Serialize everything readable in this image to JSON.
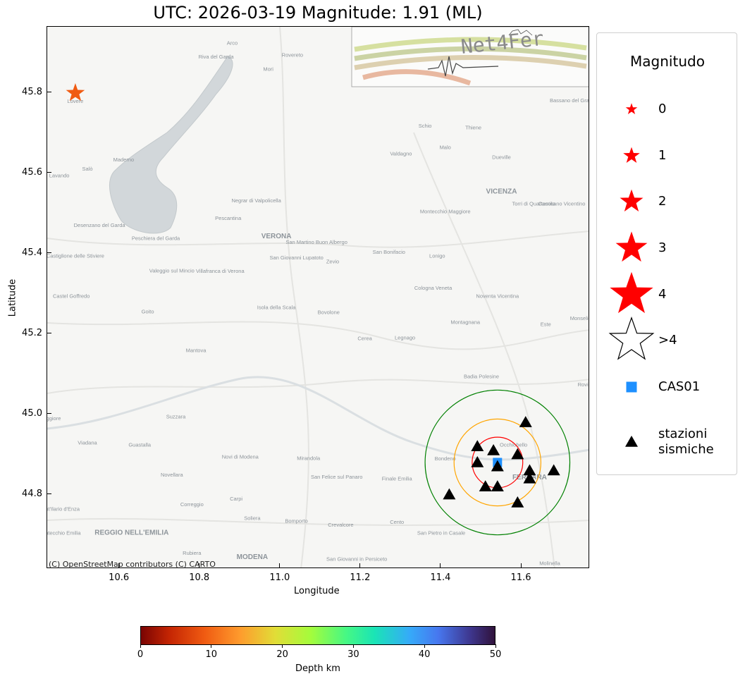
{
  "title": "UTC: 2026-03-19 Magnitude: 1.91 (ML)",
  "map": {
    "attribution": "(C) OpenStreetMap contributors (C) CARTO",
    "logo_text": "Net4Fer",
    "xlabel": "Longitude",
    "ylabel": "Latitude",
    "xlim": [
      10.42,
      11.77
    ],
    "ylim": [
      44.615,
      45.965
    ],
    "x_ticks": [
      "10.6",
      "10.8",
      "11.0",
      "11.2",
      "11.4",
      "11.6"
    ],
    "y_ticks": [
      "44.8",
      "45.0",
      "45.2",
      "45.4",
      "45.6",
      "45.8"
    ],
    "places": [
      {
        "name": "Arco",
        "lon": 10.88,
        "lat": 45.92
      },
      {
        "name": "Riva del Garda",
        "lon": 10.84,
        "lat": 45.886
      },
      {
        "name": "Rovereto",
        "lon": 11.03,
        "lat": 45.89
      },
      {
        "name": "Mori",
        "lon": 10.97,
        "lat": 45.855
      },
      {
        "name": "Lovere",
        "lon": 10.49,
        "lat": 45.775
      },
      {
        "name": "Bassano del Grappa",
        "lon": 11.73,
        "lat": 45.777
      },
      {
        "name": "Schio",
        "lon": 11.36,
        "lat": 45.714
      },
      {
        "name": "Thiene",
        "lon": 11.48,
        "lat": 45.71
      },
      {
        "name": "Malo",
        "lon": 11.41,
        "lat": 45.66
      },
      {
        "name": "Valdagno",
        "lon": 11.3,
        "lat": 45.645
      },
      {
        "name": "Dueville",
        "lon": 11.55,
        "lat": 45.636
      },
      {
        "name": "Maderno",
        "lon": 10.61,
        "lat": 45.63
      },
      {
        "name": "Salò",
        "lon": 10.52,
        "lat": 45.607
      },
      {
        "name": "Lavando",
        "lon": 10.45,
        "lat": 45.59
      },
      {
        "name": "VICENZA",
        "lon": 11.55,
        "lat": 45.55
      },
      {
        "name": "Negrar di Valpolicella",
        "lon": 10.94,
        "lat": 45.528
      },
      {
        "name": "Torri di Quartesolo",
        "lon": 11.63,
        "lat": 45.52
      },
      {
        "name": "Camisano Vicentino",
        "lon": 11.7,
        "lat": 45.52
      },
      {
        "name": "Montecchio Maggiore",
        "lon": 11.41,
        "lat": 45.501
      },
      {
        "name": "Pescantina",
        "lon": 10.87,
        "lat": 45.484
      },
      {
        "name": "Desenzano del Garda",
        "lon": 10.55,
        "lat": 45.466
      },
      {
        "name": "Peschiera del Garda",
        "lon": 10.69,
        "lat": 45.434
      },
      {
        "name": "VERONA",
        "lon": 10.99,
        "lat": 45.438
      },
      {
        "name": "San Martino Buon Albergo",
        "lon": 11.09,
        "lat": 45.424
      },
      {
        "name": "San Bonifacio",
        "lon": 11.27,
        "lat": 45.4
      },
      {
        "name": "Lonigo",
        "lon": 11.39,
        "lat": 45.39
      },
      {
        "name": "Castiglione delle Stiviere",
        "lon": 10.49,
        "lat": 45.39
      },
      {
        "name": "San Giovanni Lupatoto",
        "lon": 11.04,
        "lat": 45.386
      },
      {
        "name": "Zevio",
        "lon": 11.13,
        "lat": 45.376
      },
      {
        "name": "Valeggio sul Mincio",
        "lon": 10.73,
        "lat": 45.353
      },
      {
        "name": "Villafranca di Verona",
        "lon": 10.85,
        "lat": 45.352
      },
      {
        "name": "Cologna Veneta",
        "lon": 11.38,
        "lat": 45.31
      },
      {
        "name": "Noventa Vicentina",
        "lon": 11.54,
        "lat": 45.29
      },
      {
        "name": "Castel Goffredo",
        "lon": 10.48,
        "lat": 45.29
      },
      {
        "name": "Isola della Scala",
        "lon": 10.99,
        "lat": 45.262
      },
      {
        "name": "Bovolone",
        "lon": 11.12,
        "lat": 45.25
      },
      {
        "name": "Goito",
        "lon": 10.67,
        "lat": 45.251
      },
      {
        "name": "Montagnana",
        "lon": 11.46,
        "lat": 45.225
      },
      {
        "name": "Este",
        "lon": 11.66,
        "lat": 45.22
      },
      {
        "name": "Monselice",
        "lon": 11.75,
        "lat": 45.235
      },
      {
        "name": "Cerea",
        "lon": 11.21,
        "lat": 45.185
      },
      {
        "name": "Legnago",
        "lon": 11.31,
        "lat": 45.186
      },
      {
        "name": "Mantova",
        "lon": 10.79,
        "lat": 45.155
      },
      {
        "name": "Badia Polesine",
        "lon": 11.5,
        "lat": 45.09
      },
      {
        "name": "Rovigo",
        "lon": 11.76,
        "lat": 45.07
      },
      {
        "name": "Suzzara",
        "lon": 10.74,
        "lat": 44.99
      },
      {
        "name": "Viggiore",
        "lon": 10.43,
        "lat": 44.985
      },
      {
        "name": "Viadana",
        "lon": 10.52,
        "lat": 44.925
      },
      {
        "name": "Guastalla",
        "lon": 10.65,
        "lat": 44.92
      },
      {
        "name": "Novi di Modena",
        "lon": 10.9,
        "lat": 44.89
      },
      {
        "name": "Mirandola",
        "lon": 11.07,
        "lat": 44.886
      },
      {
        "name": "Bondeno",
        "lon": 11.41,
        "lat": 44.885
      },
      {
        "name": "Occhiobello",
        "lon": 11.58,
        "lat": 44.92
      },
      {
        "name": "Novellara",
        "lon": 10.73,
        "lat": 44.845
      },
      {
        "name": "San Felice sul Panaro",
        "lon": 11.14,
        "lat": 44.84
      },
      {
        "name": "Finale Emilia",
        "lon": 11.29,
        "lat": 44.835
      },
      {
        "name": "FERRARA",
        "lon": 11.62,
        "lat": 44.838
      },
      {
        "name": "Carpi",
        "lon": 10.89,
        "lat": 44.785
      },
      {
        "name": "Correggio",
        "lon": 10.78,
        "lat": 44.771
      },
      {
        "name": "Sant'Ilario d'Enza",
        "lon": 10.45,
        "lat": 44.76
      },
      {
        "name": "Soliera",
        "lon": 10.93,
        "lat": 44.737
      },
      {
        "name": "Bomporto",
        "lon": 11.04,
        "lat": 44.73
      },
      {
        "name": "Crevalcore",
        "lon": 11.15,
        "lat": 44.72
      },
      {
        "name": "Cento",
        "lon": 11.29,
        "lat": 44.727
      },
      {
        "name": "San Pietro in Casale",
        "lon": 11.4,
        "lat": 44.7
      },
      {
        "name": "Montecchio Emilia",
        "lon": 10.45,
        "lat": 44.7
      },
      {
        "name": "REGGIO NELL'EMILIA",
        "lon": 10.63,
        "lat": 44.7
      },
      {
        "name": "Rubiera",
        "lon": 10.78,
        "lat": 44.65
      },
      {
        "name": "MODENA",
        "lon": 10.93,
        "lat": 44.64
      },
      {
        "name": "San Giovanni in Persiceto",
        "lon": 11.19,
        "lat": 44.635
      },
      {
        "name": "Molinella",
        "lon": 11.67,
        "lat": 44.625
      }
    ]
  },
  "legend": {
    "title": "Magnitudo",
    "items": [
      {
        "label": "0",
        "marker": "star",
        "size": 14,
        "color": "#ff0000"
      },
      {
        "label": "1",
        "marker": "star",
        "size": 20,
        "color": "#ff0000"
      },
      {
        "label": "2",
        "marker": "star",
        "size": 28,
        "color": "#ff0000"
      },
      {
        "label": "3",
        "marker": "star",
        "size": 38,
        "color": "#ff0000"
      },
      {
        "label": "4",
        "marker": "star",
        "size": 52,
        "color": "#ff0000"
      },
      {
        "label": ">4",
        "marker": "star",
        "size": 52,
        "color": "none"
      },
      {
        "label": "CAS01",
        "marker": "square",
        "size": 15,
        "color": "#1e90ff"
      },
      {
        "label": "stazioni\nsismiche",
        "marker": "triangle",
        "size": 15,
        "color": "#000000"
      }
    ]
  },
  "chart_data": {
    "type": "scatter",
    "title": "UTC: 2026-03-19 Magnitude: 1.91 (ML)",
    "xlabel": "Longitude",
    "ylabel": "Latitude",
    "xlim": [
      10.42,
      11.77
    ],
    "ylim": [
      44.615,
      45.965
    ],
    "series": [
      {
        "name": "event",
        "marker": "star",
        "magnitude": 1.91,
        "color": "#f05b12",
        "points": [
          {
            "x": 10.49,
            "y": 45.8
          }
        ]
      },
      {
        "name": "CAS01",
        "marker": "square",
        "color": "#1e90ff",
        "points": [
          {
            "x": 11.54,
            "y": 44.88
          }
        ]
      },
      {
        "name": "stazioni sismiche",
        "marker": "triangle",
        "color": "#000000",
        "points": [
          {
            "x": 11.61,
            "y": 44.98
          },
          {
            "x": 11.49,
            "y": 44.92
          },
          {
            "x": 11.53,
            "y": 44.91
          },
          {
            "x": 11.59,
            "y": 44.9
          },
          {
            "x": 11.49,
            "y": 44.88
          },
          {
            "x": 11.54,
            "y": 44.87
          },
          {
            "x": 11.62,
            "y": 44.86
          },
          {
            "x": 11.68,
            "y": 44.86
          },
          {
            "x": 11.62,
            "y": 44.84
          },
          {
            "x": 11.51,
            "y": 44.82
          },
          {
            "x": 11.54,
            "y": 44.82
          },
          {
            "x": 11.42,
            "y": 44.8
          },
          {
            "x": 11.59,
            "y": 44.78
          }
        ]
      }
    ],
    "rings": [
      {
        "center": [
          11.54,
          44.88
        ],
        "radius_deg": 0.063,
        "color": "#ff0000"
      },
      {
        "center": [
          11.54,
          44.88
        ],
        "radius_deg": 0.108,
        "color": "#ffa500"
      },
      {
        "center": [
          11.54,
          44.88
        ],
        "radius_deg": 0.18,
        "color": "#008000"
      }
    ],
    "colorbar": {
      "label": "Depth km",
      "min": 0,
      "max": 50,
      "ticks": [
        "0",
        "10",
        "20",
        "30",
        "40",
        "50"
      ],
      "colormap": "turbo_r"
    }
  }
}
